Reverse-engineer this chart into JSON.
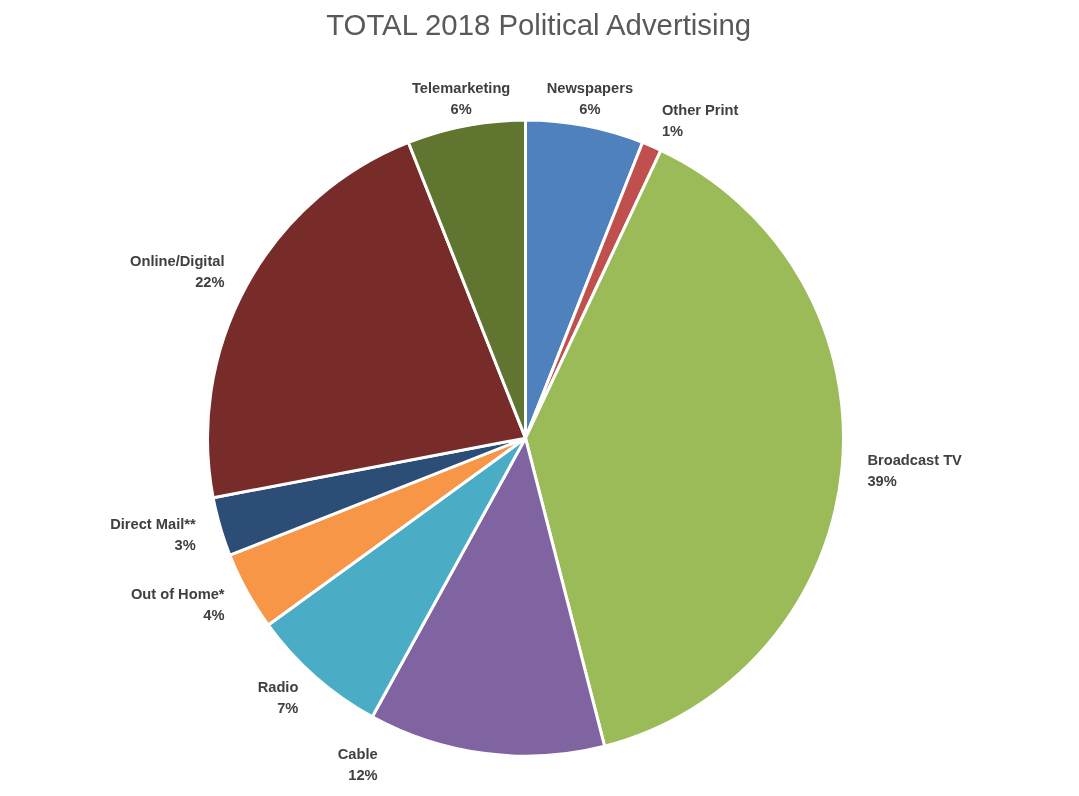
{
  "chart_data": {
    "type": "pie",
    "title": "TOTAL 2018 Political Advertising",
    "categories": [
      "Newspapers",
      "Other Print",
      "Broadcast TV",
      "Cable",
      "Radio",
      "Out of Home*",
      "Direct Mail**",
      "Online/Digital",
      "Telemarketing"
    ],
    "values": [
      6,
      1,
      39,
      12,
      7,
      4,
      3,
      22,
      6
    ],
    "colors": [
      "#4f81bd",
      "#c0504d",
      "#9bbb59",
      "#8064a2",
      "#4bacc6",
      "#f79646",
      "#2c4d75",
      "#772c2a",
      "#5f7530"
    ],
    "value_labels": [
      "6%",
      "1%",
      "39%",
      "12%",
      "7%",
      "4%",
      "3%",
      "22%",
      "6%"
    ]
  }
}
